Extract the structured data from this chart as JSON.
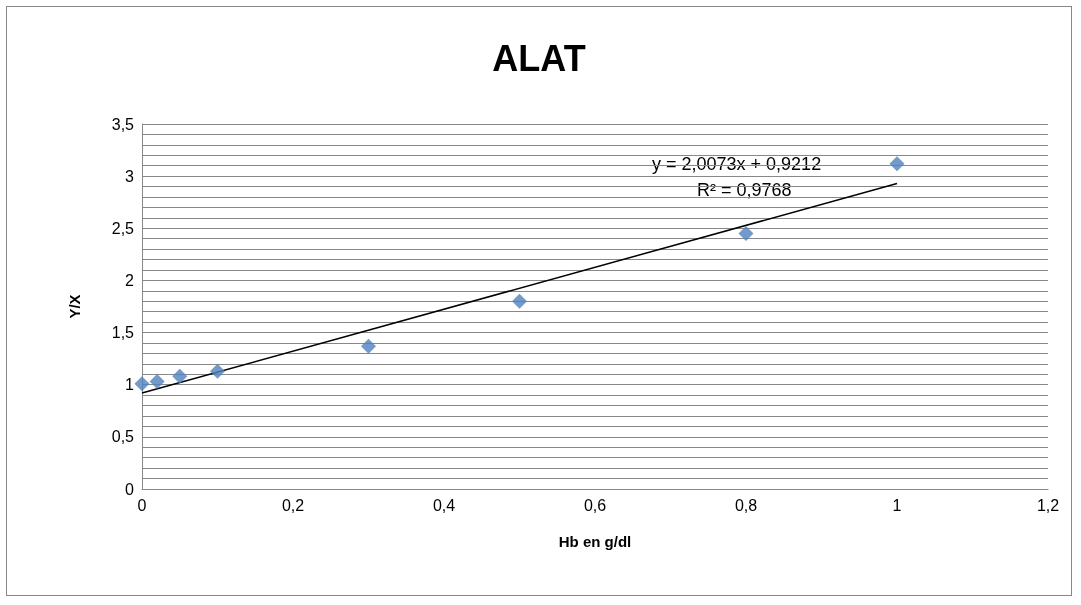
{
  "chart_data": {
    "type": "scatter",
    "title": "ALAT",
    "xlabel": "Hb en g/dl",
    "ylabel": "Y/X",
    "series": [
      {
        "marker": "diamond",
        "color": "#4f81bd",
        "x": [
          0,
          0.02,
          0.05,
          0.1,
          0.3,
          0.5,
          0.8,
          1
        ],
        "values": [
          1.01,
          1.03,
          1.08,
          1.13,
          1.37,
          1.8,
          2.45,
          3.12
        ]
      },
      {
        "type": "line",
        "marker": "none",
        "color": "#000000",
        "x": [
          0,
          1
        ],
        "values": [
          0.92,
          2.93
        ]
      }
    ],
    "annotations": [
      "y = 2,0073x + 0,9212",
      "R² = 0,9768"
    ],
    "grid": "y",
    "xlim": [
      0,
      1.2
    ],
    "xticks": [
      0,
      {
        "value": 0.2,
        "label": "0,2"
      },
      {
        "value": 0.4,
        "label": "0,4"
      },
      {
        "value": 0.6,
        "label": "0,6"
      },
      {
        "value": 0.8,
        "label": "0,8"
      },
      1,
      {
        "value": 1.2,
        "label": "1,2"
      }
    ],
    "ylim": [
      0,
      3.5
    ],
    "yticks": [
      0,
      {
        "value": 0.1,
        "label": null
      },
      {
        "value": 0.2,
        "label": null
      },
      {
        "value": 0.3,
        "label": null
      },
      {
        "value": 0.4,
        "label": null
      },
      {
        "value": 0.5,
        "label": "0,5"
      },
      {
        "value": 0.6,
        "label": null
      },
      {
        "value": 0.7,
        "label": null
      },
      {
        "value": 0.8,
        "label": null
      },
      {
        "value": 0.9,
        "label": null
      },
      1,
      {
        "value": 1.1,
        "label": null
      },
      {
        "value": 1.2,
        "label": null
      },
      {
        "value": 1.3,
        "label": null
      },
      {
        "value": 1.4,
        "label": null
      },
      {
        "value": 1.5,
        "label": "1,5"
      },
      {
        "value": 1.6,
        "label": null
      },
      {
        "value": 1.7,
        "label": null
      },
      {
        "value": 1.8,
        "label": null
      },
      {
        "value": 1.9,
        "label": null
      },
      2,
      {
        "value": 2.1,
        "label": null
      },
      {
        "value": 2.2,
        "label": null
      },
      {
        "value": 2.3,
        "label": null
      },
      {
        "value": 2.4,
        "label": null
      },
      {
        "value": 2.5,
        "label": "2,5"
      },
      {
        "value": 2.6,
        "label": null
      },
      {
        "value": 2.7,
        "label": null
      },
      {
        "value": 2.8,
        "label": null
      },
      {
        "value": 2.9,
        "label": null
      },
      3,
      {
        "value": 3.1,
        "label": null
      },
      {
        "value": 3.2,
        "label": null
      },
      {
        "value": 3.3,
        "label": null
      },
      {
        "value": 3.4,
        "label": null
      },
      {
        "value": 3.5,
        "label": "3,5"
      }
    ]
  }
}
